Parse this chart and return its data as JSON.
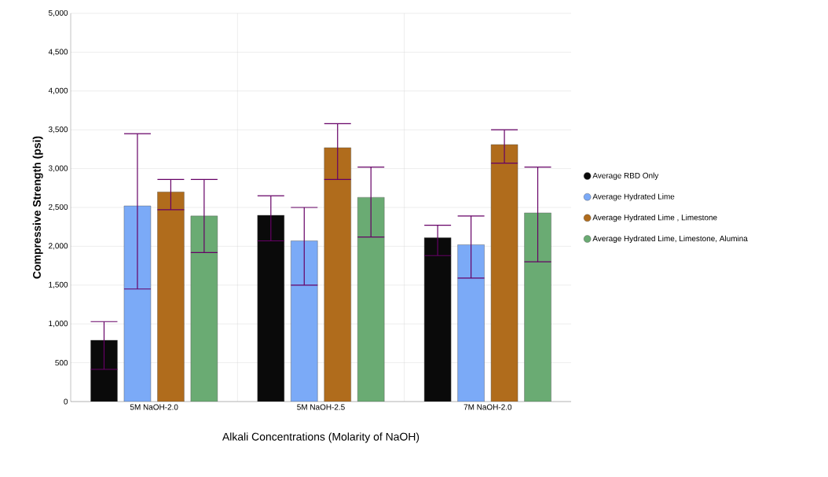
{
  "chart_data": {
    "type": "bar",
    "xlabel": "Alkali Concentrations (Molarity of NaOH)",
    "ylabel": "Compressive Strength (psi)",
    "categories": [
      "5M NaOH-2.0",
      "5M NaOH-2.5",
      "7M NaOH-2.0"
    ],
    "series": [
      {
        "name": "Average RBD Only",
        "color": "#0a0a0a",
        "values": [
          790,
          2400,
          2110
        ],
        "errors": [
          [
            415,
            1030
          ],
          [
            2070,
            2650
          ],
          [
            1880,
            2270
          ]
        ]
      },
      {
        "name": "Average Hydrated Lime",
        "color": "#7baaf7",
        "values": [
          2520,
          2070,
          2020
        ],
        "errors": [
          [
            1450,
            3450
          ],
          [
            1500,
            2500
          ],
          [
            1590,
            2390
          ]
        ]
      },
      {
        "name": "Average Hydrated Lime , Limestone",
        "color": "#b06c1c",
        "values": [
          2700,
          3270,
          3310
        ],
        "errors": [
          [
            2470,
            2860
          ],
          [
            2860,
            3580
          ],
          [
            3070,
            3500
          ]
        ]
      },
      {
        "name": "Average Hydrated Lime, Limestone, Alumina",
        "color": "#6aab73",
        "values": [
          2390,
          2630,
          2430
        ],
        "errors": [
          [
            1920,
            2860
          ],
          [
            2120,
            3020
          ],
          [
            1800,
            3020
          ]
        ]
      }
    ],
    "ylim": [
      0,
      5000
    ],
    "yticks": [
      0,
      500,
      {
        "value": 1000,
        "label": "1,000"
      },
      {
        "value": 1500,
        "label": "1,500"
      },
      {
        "value": 2000,
        "label": "2,000"
      },
      {
        "value": 2500,
        "label": "2,500"
      },
      {
        "value": 3000,
        "label": "3,000"
      },
      {
        "value": 3500,
        "label": "3,500"
      },
      {
        "value": 4000,
        "label": "4,000"
      },
      {
        "value": 4500,
        "label": "4,500"
      },
      {
        "value": 5000,
        "label": "5,000"
      }
    ],
    "grid": true,
    "legend": "right",
    "marker": "circle"
  }
}
